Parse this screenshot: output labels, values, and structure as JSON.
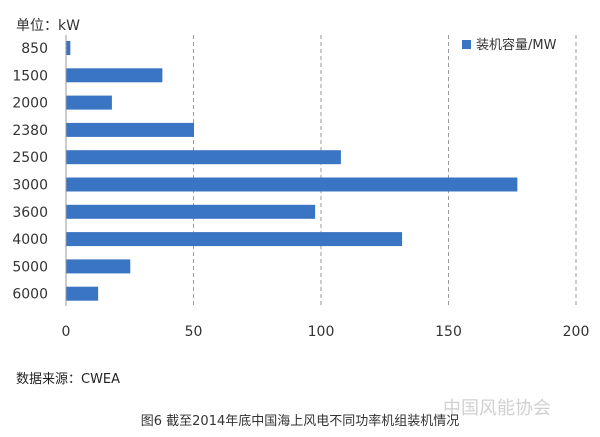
{
  "chart_data": {
    "type": "bar",
    "orientation": "horizontal",
    "title": "",
    "unit_label": "单位：kW",
    "xlabel": "",
    "ylabel": "",
    "categories": [
      "850",
      "1500",
      "2000",
      "2380",
      "2500",
      "3000",
      "3600",
      "4000",
      "5000",
      "6000"
    ],
    "series": [
      {
        "name": "装机容量/MW",
        "color": "#3a75c4",
        "values": [
          1.7,
          37.8,
          18.0,
          50.2,
          107.8,
          177.0,
          97.7,
          131.8,
          25.2,
          12.6
        ]
      }
    ],
    "xlim": [
      0,
      200
    ],
    "xticks": [
      0,
      50,
      100,
      150,
      200
    ],
    "grid": "vertical-dashed",
    "legend_position": "top-right"
  },
  "source_note": "数据来源：CWEA",
  "caption": "图6 截至2014年底中国海上风电不同功率机组装机情况",
  "watermark": "中国风能协会"
}
